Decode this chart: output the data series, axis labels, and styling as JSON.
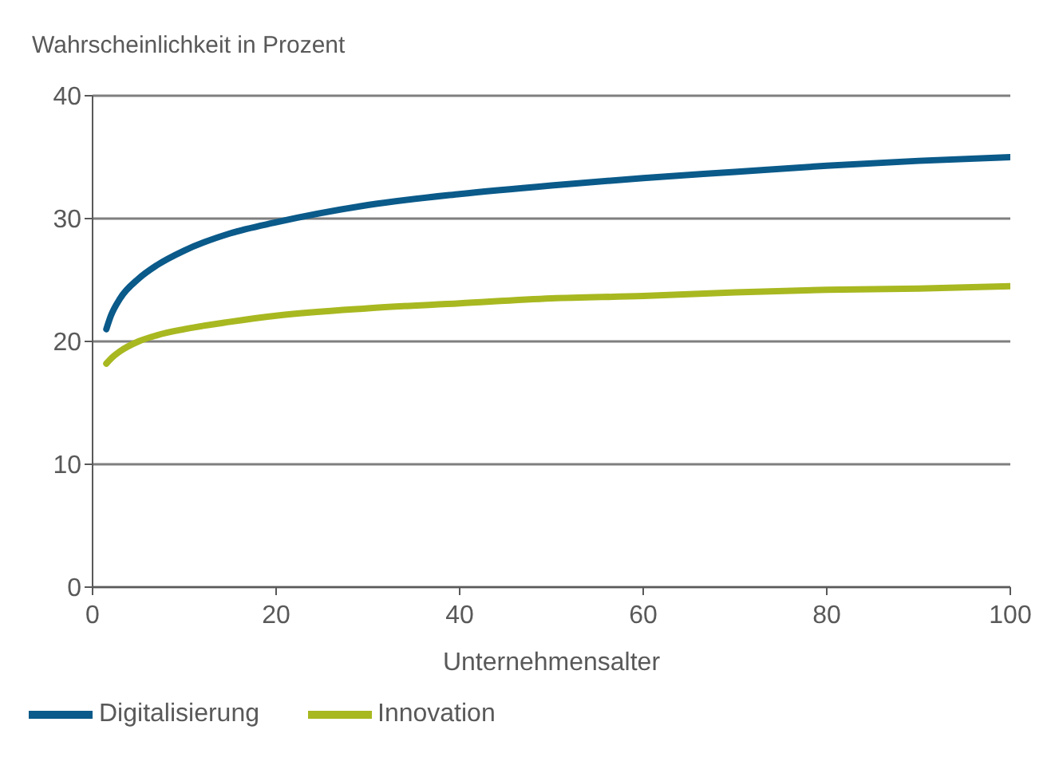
{
  "chart_data": {
    "type": "line",
    "ylabel": "Wahrscheinlichkeit in Prozent",
    "xlabel": "Unternehmensalter",
    "x": [
      1.5,
      2,
      3,
      5,
      7,
      10,
      15,
      20,
      30,
      40,
      50,
      60,
      70,
      80,
      90,
      100
    ],
    "series": [
      {
        "name": "Digitalisierung",
        "color": "#0a5a8a",
        "values": [
          21.0,
          22.1,
          23.5,
          25.1,
          26.2,
          27.4,
          28.8,
          29.7,
          31.1,
          32.0,
          32.7,
          33.3,
          33.8,
          34.3,
          34.7,
          35.0
        ]
      },
      {
        "name": "Innovation",
        "color": "#a8b820",
        "values": [
          18.2,
          18.6,
          19.2,
          20.0,
          20.5,
          21.0,
          21.6,
          22.1,
          22.7,
          23.1,
          23.5,
          23.7,
          24.0,
          24.2,
          24.3,
          24.5
        ]
      }
    ],
    "xlim": [
      0,
      100
    ],
    "xticks": [
      0,
      20,
      40,
      60,
      80,
      100
    ],
    "ylim": [
      0,
      40
    ],
    "yticks": [
      0,
      10,
      20,
      30,
      40
    ],
    "grid": "y",
    "legend": "bottom",
    "marker": "none",
    "line_style": "solid"
  }
}
